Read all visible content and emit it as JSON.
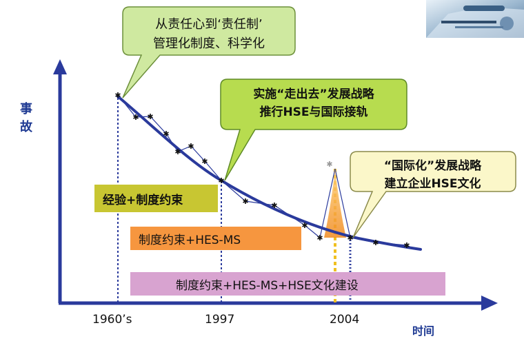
{
  "axes": {
    "y_label": "事故",
    "x_label": "时间",
    "x_ticks": [
      "1960’s",
      "1997",
      "2004"
    ]
  },
  "bands": [
    {
      "label": "经验+制度约束",
      "color": "#c8c632"
    },
    {
      "label": "制度约束+HES-MS",
      "color": "#f6963f"
    },
    {
      "label": "制度约束+HES-MS+HSE文化建设",
      "color": "#d8a3d0"
    }
  ],
  "callouts": [
    {
      "line1": "从责任心到‘责任制’",
      "line2": "管理化制度、科学化",
      "color": "#cfe9a0"
    },
    {
      "line1": "实施“走出去”发展战略",
      "line2": "推行HSE与国际接轨",
      "color": "#b7dc4f"
    },
    {
      "line1": "“国际化”发展战略",
      "line2": "建立企业HSE文化",
      "color": "#fbf7c9"
    }
  ],
  "colors": {
    "axis": "#2a3a9c",
    "curve": "#2a3a9c",
    "marker": "#111111",
    "guide_blue": "#2a3a9c",
    "guide_yellow": "#f0c020",
    "spike": "#f0a030"
  },
  "decorations": {
    "top_right_image": "industrial-plant-photo"
  }
}
